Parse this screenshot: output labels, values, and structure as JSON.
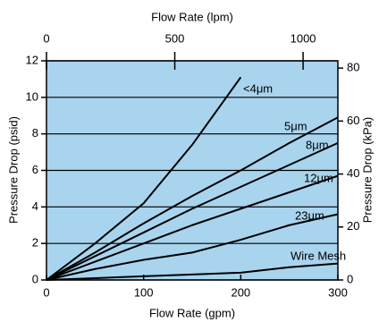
{
  "chart_data": {
    "type": "line",
    "xlabel": "Flow Rate (gpm)",
    "x2label": "Flow Rate (lpm)",
    "ylabel": "Pressure Drop (psid)",
    "y2label": "Pressure Drop (kPa)",
    "x": [
      0,
      50,
      100,
      150,
      200,
      250,
      300
    ],
    "xlim": [
      0,
      300
    ],
    "xticks": [
      0,
      100,
      200,
      300
    ],
    "x2lim": [
      0,
      1135.6
    ],
    "x2ticks": [
      0,
      500,
      1000
    ],
    "ylim": [
      0,
      12
    ],
    "yticks": [
      0,
      2,
      4,
      6,
      8,
      10,
      12
    ],
    "y2lim": [
      0,
      82.74
    ],
    "y2ticks": [
      0,
      20,
      40,
      60,
      80
    ],
    "grid": true,
    "background": "#a9d4ee",
    "series": [
      {
        "name": "<4μm",
        "color": "#000000",
        "values": [
          0,
          2.0,
          4.2,
          7.4,
          11.1,
          null,
          null
        ]
      },
      {
        "name": "5μm",
        "color": "#000000",
        "values": [
          0,
          1.5,
          3.1,
          4.6,
          6.0,
          7.5,
          8.9
        ]
      },
      {
        "name": "8μm",
        "color": "#000000",
        "values": [
          0,
          1.3,
          2.6,
          3.9,
          5.1,
          6.3,
          7.5
        ]
      },
      {
        "name": "12μm",
        "color": "#000000",
        "values": [
          0,
          1.0,
          2.0,
          3.0,
          3.9,
          4.8,
          5.7
        ]
      },
      {
        "name": "23μm",
        "color": "#000000",
        "values": [
          0,
          0.6,
          1.1,
          1.5,
          2.2,
          3.0,
          3.6
        ]
      },
      {
        "name": "Wire Mesh",
        "color": "#000000",
        "values": [
          0,
          0.1,
          0.2,
          0.3,
          0.4,
          0.7,
          0.9
        ]
      }
    ]
  }
}
